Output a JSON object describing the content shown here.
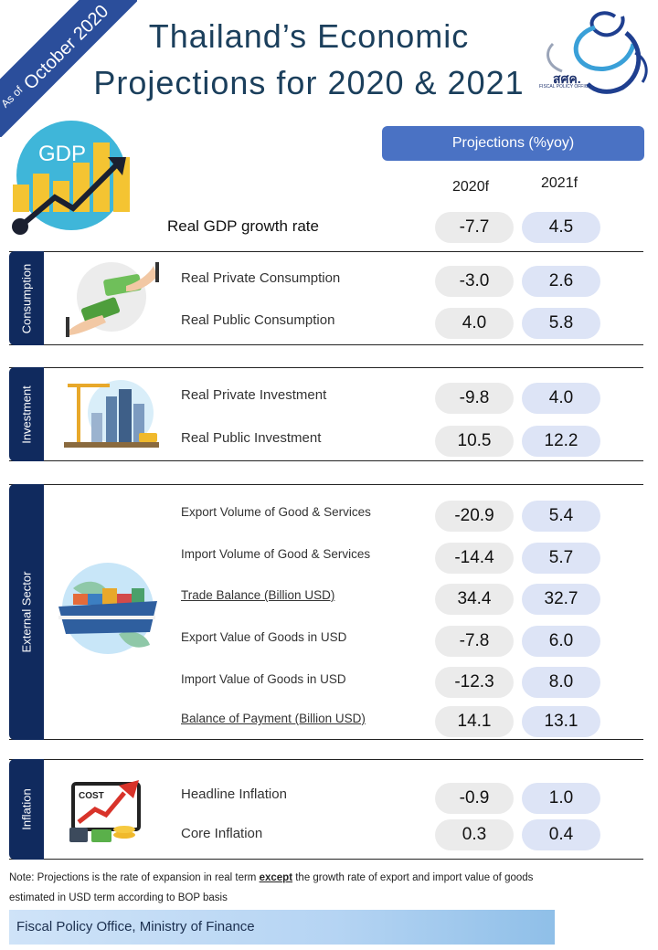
{
  "ribbon": {
    "as_of": "As of",
    "date": "October 2020"
  },
  "title": {
    "line1": "Thailand’s Economic",
    "line2": "Projections for 2020 & 2021"
  },
  "logo": {
    "text": "สศค.",
    "sub": "FISCAL POLICY OFFICE"
  },
  "projections": {
    "header": "Projections (%yoy)",
    "col1": "2020f",
    "col2": "2021f"
  },
  "gdp": {
    "icon_text": "GDP",
    "label": "Real GDP growth rate",
    "v2020": "-7.7",
    "v2021": "4.5"
  },
  "sections": {
    "consumption": {
      "tab": "Consumption",
      "rows": [
        {
          "label": "Real Private Consumption",
          "v2020": "-3.0",
          "v2021": "2.6"
        },
        {
          "label": "Real Public Consumption",
          "v2020": "4.0",
          "v2021": "5.8"
        }
      ]
    },
    "investment": {
      "tab": "Investment",
      "rows": [
        {
          "label": "Real Private Investment",
          "v2020": "-9.8",
          "v2021": "4.0"
        },
        {
          "label": "Real Public Investment",
          "v2020": "10.5",
          "v2021": "12.2"
        }
      ]
    },
    "external": {
      "tab": "External Sector",
      "rows": [
        {
          "label": "Export Volume of Good & Services",
          "v2020": "-20.9",
          "v2021": "5.4"
        },
        {
          "label": "Import Volume of Good & Services",
          "v2020": "-14.4",
          "v2021": "5.7"
        },
        {
          "label": "Trade Balance (Billion USD)",
          "v2020": "34.4",
          "v2021": "32.7"
        },
        {
          "label": "Export Value of Goods in USD",
          "v2020": "-7.8",
          "v2021": "6.0"
        },
        {
          "label": "Import Value of Goods in USD",
          "v2020": "-12.3",
          "v2021": "8.0"
        },
        {
          "label": "Balance of Payment (Billion USD)",
          "v2020": "14.1",
          "v2021": "13.1"
        }
      ]
    },
    "inflation": {
      "tab": "Inflation",
      "icon_text": "COST",
      "rows": [
        {
          "label": "Headline Inflation",
          "v2020": "-0.9",
          "v2021": "1.0"
        },
        {
          "label": "Core Inflation",
          "v2020": "0.3",
          "v2021": "0.4"
        }
      ]
    }
  },
  "note": {
    "prefix": "Note: Projections is the rate of expansion in real term ",
    "emphasis": "except",
    "suffix": " the growth rate of export and import value of goods estimated in USD term according to BOP basis"
  },
  "footer": {
    "text": "Fiscal Policy Office, Ministry of Finance"
  },
  "colors": {
    "brand_blue": "#2b4e9b",
    "header_blue": "#4a72c4",
    "tab_navy": "#102a5e",
    "pill_2020": "#ebebeb",
    "pill_2021": "#dde4f6"
  }
}
